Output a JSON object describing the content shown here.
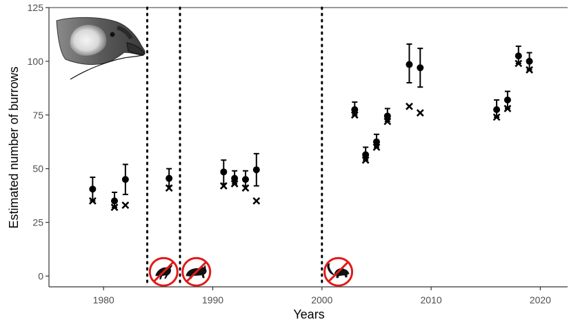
{
  "chart_data": {
    "type": "scatter",
    "xlabel": "Years",
    "ylabel": "Estimated number of burrows",
    "xlim": [
      1975,
      2022.5
    ],
    "ylim": [
      -5,
      125
    ],
    "xticks": [
      1980,
      1990,
      2000,
      2010,
      2020
    ],
    "yticks": [
      0,
      25,
      50,
      75,
      100,
      125
    ],
    "grid": false,
    "series": [
      {
        "marker": "circle-with-errorbar",
        "points": [
          {
            "x": 1979,
            "y": 40.5,
            "lo": 35,
            "hi": 46
          },
          {
            "x": 1981,
            "y": 35,
            "lo": 32,
            "hi": 39
          },
          {
            "x": 1982,
            "y": 45,
            "lo": 38,
            "hi": 52
          },
          {
            "x": 1986,
            "y": 45.5,
            "lo": 42,
            "hi": 50
          },
          {
            "x": 1991,
            "y": 48.5,
            "lo": 43,
            "hi": 54
          },
          {
            "x": 1992,
            "y": 45.5,
            "lo": 43,
            "hi": 49
          },
          {
            "x": 1993,
            "y": 45,
            "lo": 42,
            "hi": 49
          },
          {
            "x": 1994,
            "y": 49.5,
            "lo": 42,
            "hi": 57
          },
          {
            "x": 2003,
            "y": 77.5,
            "lo": 75,
            "hi": 81
          },
          {
            "x": 2004,
            "y": 56.5,
            "lo": 54,
            "hi": 60
          },
          {
            "x": 2005,
            "y": 62.5,
            "lo": 60,
            "hi": 66
          },
          {
            "x": 2006,
            "y": 74.5,
            "lo": 72,
            "hi": 78
          },
          {
            "x": 2008,
            "y": 98.5,
            "lo": 90,
            "hi": 108
          },
          {
            "x": 2009,
            "y": 97,
            "lo": 88,
            "hi": 106
          },
          {
            "x": 2016,
            "y": 77.5,
            "lo": 74,
            "hi": 82
          },
          {
            "x": 2017,
            "y": 82,
            "lo": 78,
            "hi": 86
          },
          {
            "x": 2018,
            "y": 102.5,
            "lo": 99,
            "hi": 107
          },
          {
            "x": 2019,
            "y": 100,
            "lo": 96,
            "hi": 104
          }
        ]
      },
      {
        "marker": "cross",
        "points": [
          {
            "x": 1979,
            "y": 35
          },
          {
            "x": 1981,
            "y": 32
          },
          {
            "x": 1982,
            "y": 33
          },
          {
            "x": 1986,
            "y": 41
          },
          {
            "x": 1991,
            "y": 42
          },
          {
            "x": 1992,
            "y": 43
          },
          {
            "x": 1993,
            "y": 41
          },
          {
            "x": 1994,
            "y": 35
          },
          {
            "x": 2003,
            "y": 75
          },
          {
            "x": 2004,
            "y": 54
          },
          {
            "x": 2005,
            "y": 60
          },
          {
            "x": 2006,
            "y": 72
          },
          {
            "x": 2008,
            "y": 79
          },
          {
            "x": 2009,
            "y": 76
          },
          {
            "x": 2016,
            "y": 74
          },
          {
            "x": 2017,
            "y": 78
          },
          {
            "x": 2018,
            "y": 99
          },
          {
            "x": 2019,
            "y": 96
          }
        ]
      }
    ],
    "vlines": [
      {
        "x": 1984,
        "style": "dotted"
      },
      {
        "x": 1987,
        "style": "dotted"
      },
      {
        "x": 2000,
        "style": "dotted"
      }
    ],
    "annotations": [
      {
        "icon": "no-weka-icon",
        "x": 1985.5,
        "y": 2
      },
      {
        "icon": "no-cat-icon",
        "x": 1988.5,
        "y": 2
      },
      {
        "icon": "no-rat-icon",
        "x": 2001.5,
        "y": 2
      },
      {
        "icon": "bird-head-illustration",
        "position": "top-left"
      }
    ]
  }
}
